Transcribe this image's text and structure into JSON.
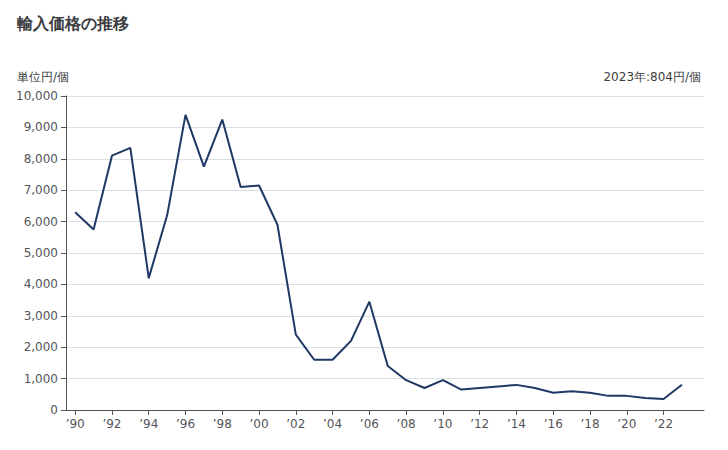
{
  "chart_data": {
    "type": "line",
    "title": "輸入価格の推移",
    "ylabel": "単位円/個",
    "annotation": "2023年:804円/個",
    "x": [
      1990,
      1991,
      1992,
      1993,
      1994,
      1995,
      1996,
      1997,
      1998,
      1999,
      2000,
      2001,
      2002,
      2003,
      2004,
      2005,
      2006,
      2007,
      2008,
      2009,
      2010,
      2011,
      2012,
      2013,
      2014,
      2015,
      2016,
      2017,
      2018,
      2019,
      2020,
      2021,
      2022,
      2023
    ],
    "values": [
      6300,
      5750,
      8100,
      8350,
      4200,
      6200,
      9400,
      7750,
      9250,
      7100,
      7150,
      5900,
      2400,
      1600,
      1600,
      2200,
      3450,
      1400,
      950,
      700,
      950,
      650,
      700,
      750,
      800,
      700,
      550,
      600,
      550,
      450,
      450,
      380,
      350,
      804
    ],
    "color": "#1f3864",
    "xlim": [
      1989.5,
      2024.2
    ],
    "xticks": [
      {
        "value": 1990,
        "label": "’90"
      },
      {
        "value": 1992,
        "label": "’92"
      },
      {
        "value": 1994,
        "label": "’94"
      },
      {
        "value": 1996,
        "label": "’96"
      },
      {
        "value": 1998,
        "label": "’98"
      },
      {
        "value": 2000,
        "label": "’00"
      },
      {
        "value": 2002,
        "label": "’02"
      },
      {
        "value": 2004,
        "label": "’04"
      },
      {
        "value": 2006,
        "label": "’06"
      },
      {
        "value": 2008,
        "label": "’08"
      },
      {
        "value": 2010,
        "label": "’10"
      },
      {
        "value": 2012,
        "label": "’12"
      },
      {
        "value": 2014,
        "label": "’14"
      },
      {
        "value": 2016,
        "label": "’16"
      },
      {
        "value": 2018,
        "label": "’18"
      },
      {
        "value": 2020,
        "label": "’20"
      },
      {
        "value": 2022,
        "label": "’22"
      }
    ],
    "ylim": [
      0,
      10000
    ],
    "yticks": [
      0,
      {
        "value": 1000,
        "label": "1,000"
      },
      {
        "value": 2000,
        "label": "2,000"
      },
      {
        "value": 3000,
        "label": "3,000"
      },
      {
        "value": 4000,
        "label": "4,000"
      },
      {
        "value": 5000,
        "label": "5,000"
      },
      {
        "value": 6000,
        "label": "6,000"
      },
      {
        "value": 7000,
        "label": "7,000"
      },
      {
        "value": 8000,
        "label": "8,000"
      },
      {
        "value": 9000,
        "label": "9,000"
      },
      {
        "value": 10000,
        "label": "10,000"
      }
    ],
    "grid": true
  }
}
